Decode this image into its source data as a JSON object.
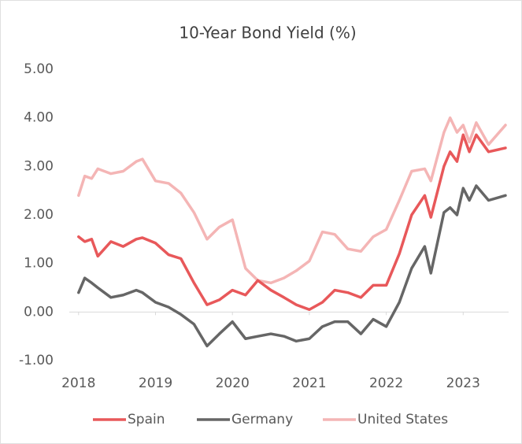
{
  "chart_data": {
    "type": "line",
    "title": "10-Year Bond Yield (%)",
    "x": [
      2018.0,
      2018.08,
      2018.17,
      2018.25,
      2018.42,
      2018.58,
      2018.75,
      2018.83,
      2019.0,
      2019.17,
      2019.33,
      2019.5,
      2019.67,
      2019.83,
      2020.0,
      2020.17,
      2020.33,
      2020.5,
      2020.67,
      2020.83,
      2021.0,
      2021.17,
      2021.33,
      2021.5,
      2021.67,
      2021.83,
      2022.0,
      2022.17,
      2022.33,
      2022.5,
      2022.58,
      2022.75,
      2022.83,
      2022.92,
      2023.0,
      2023.08,
      2023.17,
      2023.33,
      2023.55
    ],
    "series": [
      {
        "name": "Spain",
        "color": "#e8585a",
        "values": [
          1.55,
          1.45,
          1.5,
          1.15,
          1.45,
          1.35,
          1.5,
          1.53,
          1.42,
          1.18,
          1.1,
          0.6,
          0.15,
          0.25,
          0.45,
          0.35,
          0.65,
          0.45,
          0.3,
          0.15,
          0.05,
          0.2,
          0.45,
          0.4,
          0.3,
          0.55,
          0.55,
          1.2,
          2.0,
          2.4,
          1.95,
          3.0,
          3.3,
          3.1,
          3.65,
          3.3,
          3.65,
          3.3,
          3.38
        ]
      },
      {
        "name": "Germany",
        "color": "#666666",
        "values": [
          0.4,
          0.7,
          0.6,
          0.5,
          0.3,
          0.35,
          0.45,
          0.4,
          0.2,
          0.1,
          -0.05,
          -0.25,
          -0.7,
          -0.45,
          -0.2,
          -0.55,
          -0.5,
          -0.45,
          -0.5,
          -0.6,
          -0.55,
          -0.3,
          -0.2,
          -0.2,
          -0.45,
          -0.15,
          -0.3,
          0.2,
          0.9,
          1.35,
          0.8,
          2.05,
          2.15,
          2.0,
          2.55,
          2.3,
          2.6,
          2.3,
          2.4
        ]
      },
      {
        "name": "United States",
        "color": "#f4b5b5",
        "values": [
          2.4,
          2.8,
          2.75,
          2.95,
          2.85,
          2.9,
          3.1,
          3.15,
          2.7,
          2.65,
          2.45,
          2.05,
          1.5,
          1.75,
          1.9,
          0.9,
          0.65,
          0.6,
          0.7,
          0.85,
          1.05,
          1.65,
          1.6,
          1.3,
          1.25,
          1.55,
          1.7,
          2.3,
          2.9,
          2.95,
          2.7,
          3.7,
          4.0,
          3.7,
          3.85,
          3.5,
          3.9,
          3.45,
          3.85
        ]
      }
    ],
    "xlim": [
      2017.92,
      2023.56
    ],
    "xticks": [
      2018,
      2019,
      2020,
      2021,
      2022,
      2023
    ],
    "ylim": [
      -1,
      5
    ],
    "yticks": [
      {
        "value": -1,
        "label": "-1.00"
      },
      {
        "value": 0,
        "label": "0.00"
      },
      {
        "value": 1,
        "label": "1.00"
      },
      {
        "value": 2,
        "label": "2.00"
      },
      {
        "value": 3,
        "label": "3.00"
      },
      {
        "value": 4,
        "label": "4.00"
      },
      {
        "value": 5,
        "label": "5.00"
      }
    ],
    "grid": false,
    "legend": "bottom"
  }
}
